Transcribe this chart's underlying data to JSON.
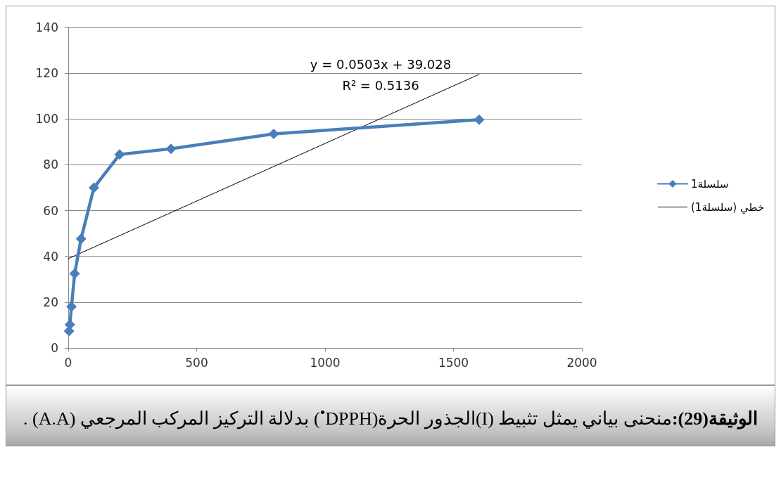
{
  "chart_data": {
    "type": "line",
    "x": [
      3.125,
      6.25,
      12.5,
      25,
      50,
      100,
      200,
      400,
      800,
      1600
    ],
    "series": [
      {
        "name": "سلسلة1",
        "color": "#4a7ebb",
        "values": [
          7.4,
          10.2,
          18,
          32.5,
          47.7,
          70,
          84.5,
          87,
          93.5,
          99.7
        ]
      },
      {
        "name": "خطي (سلسلة1)",
        "type": "line",
        "color": "#000000",
        "x": [
          0,
          1600
        ],
        "values": [
          39,
          119.5
        ],
        "marker": "none"
      }
    ],
    "xlim": [
      0,
      2000
    ],
    "xticks": [
      0,
      500,
      1000,
      1500,
      2000
    ],
    "ylim": [
      0,
      140
    ],
    "yticks": [
      0,
      20,
      40,
      60,
      80,
      100,
      120,
      140
    ],
    "grid": "y",
    "legend": "right",
    "marker": "diamond",
    "line_style": "solid",
    "annotations": [
      "y = 0.0503x + 39.028",
      "R² = 0.5136",
      "الوثيقة(29):",
      "منحنى بياني يمثل تثبيط (I)الجذور الحرة(DPPH$^{•}$) بدلالة التركيز المركب المرجعي (A.A) ."
    ]
  }
}
